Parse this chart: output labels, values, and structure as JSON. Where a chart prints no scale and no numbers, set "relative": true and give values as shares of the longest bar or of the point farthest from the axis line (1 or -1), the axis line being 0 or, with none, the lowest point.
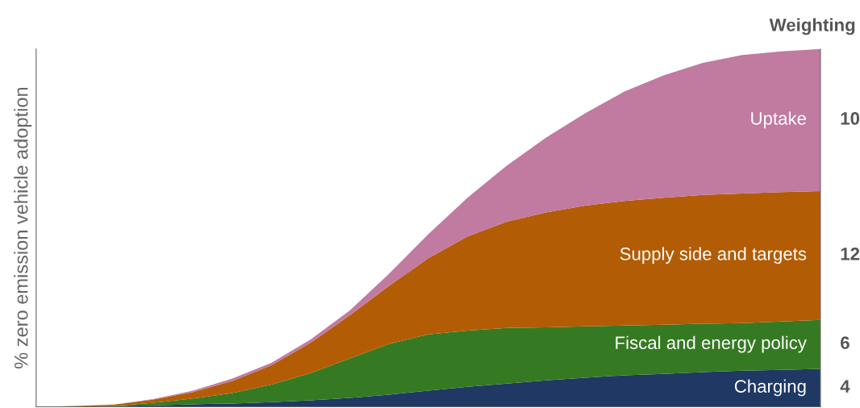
{
  "chart_data": {
    "type": "area",
    "stacked": true,
    "relative": true,
    "ylabel": "% zero emission vehicle adoption",
    "categories": [
      null,
      null,
      null,
      null,
      null,
      null,
      null,
      null,
      null,
      null,
      null,
      null,
      null,
      null,
      null,
      null,
      null,
      null,
      null,
      null,
      null
    ],
    "series": [
      {
        "name": "Charging",
        "color": "#1f3864",
        "values": [
          0,
          0,
          0.002,
          0.004,
          0.007,
          0.009,
          0.013,
          0.018,
          0.025,
          0.034,
          0.045,
          0.056,
          0.065,
          0.074,
          0.081,
          0.088,
          0.092,
          0.097,
          0.101,
          0.103,
          0.106
        ]
      },
      {
        "name": "Fiscal and energy policy",
        "color": "#357a22",
        "values": [
          0,
          0,
          0,
          0.007,
          0.016,
          0.029,
          0.049,
          0.076,
          0.11,
          0.142,
          0.157,
          0.157,
          0.155,
          0.148,
          0.144,
          0.139,
          0.137,
          0.135,
          0.133,
          0.135,
          0.137
        ]
      },
      {
        "name": "Supply side and targets",
        "color": "#b35c06",
        "values": [
          0,
          0.002,
          0.004,
          0.009,
          0.018,
          0.034,
          0.054,
          0.085,
          0.121,
          0.162,
          0.213,
          0.263,
          0.297,
          0.321,
          0.337,
          0.348,
          0.355,
          0.36,
          0.362,
          0.362,
          0.36
        ]
      },
      {
        "name": "Uptake",
        "color": "#c17aa0",
        "values": [
          0,
          0,
          0,
          0.002,
          0.004,
          0.007,
          0.007,
          0.009,
          0.013,
          0.034,
          0.067,
          0.108,
          0.157,
          0.209,
          0.258,
          0.306,
          0.342,
          0.369,
          0.387,
          0.393,
          0.397
        ]
      }
    ],
    "annotations": [
      "Weighting",
      "10",
      "12",
      "6",
      "4"
    ],
    "legend": false
  }
}
